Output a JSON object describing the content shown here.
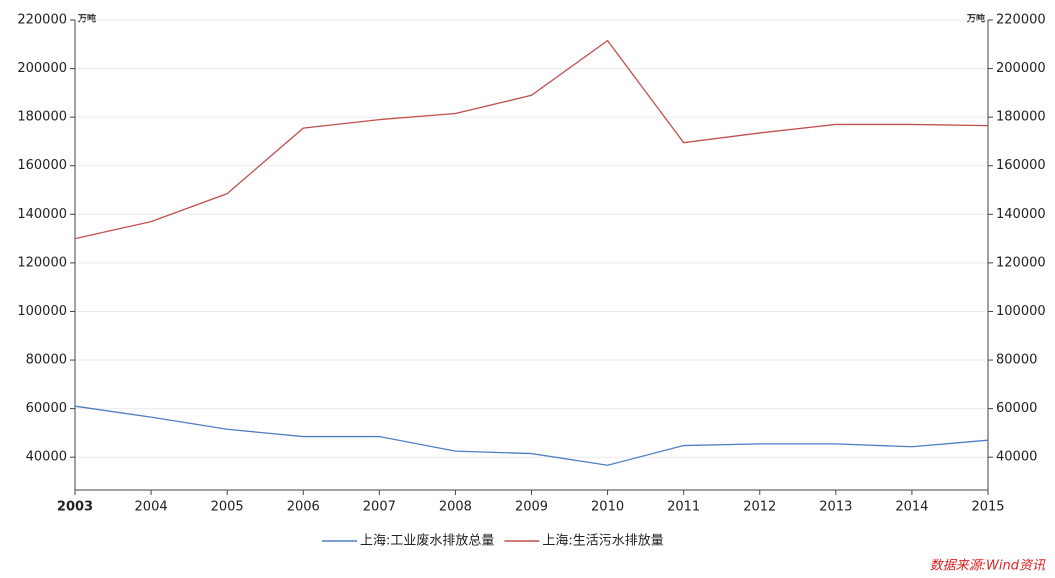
{
  "chart_data": {
    "type": "line",
    "unit_left": "万吨",
    "unit_right": "万吨",
    "categories": [
      "2003",
      "2004",
      "2005",
      "2006",
      "2007",
      "2008",
      "2009",
      "2010",
      "2011",
      "2012",
      "2013",
      "2014",
      "2015"
    ],
    "series": [
      {
        "name": "上海:工业废水排放总量",
        "color": "#4f7ec4",
        "values": [
          61000,
          56500,
          51500,
          48500,
          48500,
          42500,
          41500,
          36700,
          44800,
          45500,
          45500,
          44300,
          47000
        ]
      },
      {
        "name": "上海:生活污水排放量",
        "color": "#c0504d",
        "axis": "y2",
        "values": [
          130000,
          137000,
          148500,
          175500,
          179000,
          181500,
          189000,
          211500,
          169500,
          173500,
          177000,
          177000,
          176500
        ]
      }
    ],
    "ylim": [
      26500,
      220000
    ],
    "yticks": [
      40000,
      60000,
      80000,
      100000,
      120000,
      140000,
      160000,
      180000,
      200000,
      220000
    ],
    "y2lim": [
      26500,
      220000
    ],
    "y2ticks": [
      40000,
      60000,
      80000,
      100000,
      120000,
      140000,
      160000,
      180000,
      200000,
      220000
    ],
    "grid": true,
    "source": "数据来源:Wind资讯"
  }
}
